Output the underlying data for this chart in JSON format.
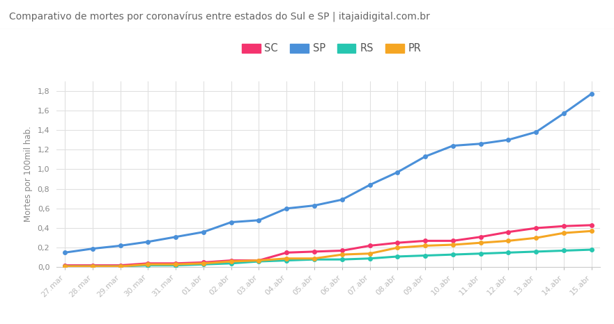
{
  "title": "Comparativo de mortes por coronavírus entre estados do Sul e SP | itajaidigital.com.br",
  "ylabel": "Mortes por 100mil hab.",
  "x_labels": [
    "27.mar",
    "28.mar",
    "29.mar",
    "30.mar",
    "31.mar",
    "01.abr",
    "02.abr",
    "03.abr",
    "04.abr",
    "05.abr",
    "06.abr",
    "07.abr",
    "08.abr",
    "09.abr",
    "10.abr",
    "11.abr",
    "12.abr",
    "13.abr",
    "14.abr",
    "15.abr"
  ],
  "SC": [
    0.02,
    0.02,
    0.02,
    0.04,
    0.04,
    0.05,
    0.07,
    0.07,
    0.15,
    0.16,
    0.17,
    0.22,
    0.25,
    0.27,
    0.27,
    0.31,
    0.36,
    0.4,
    0.42,
    0.43
  ],
  "SP": [
    0.15,
    0.19,
    0.22,
    0.26,
    0.31,
    0.36,
    0.46,
    0.48,
    0.6,
    0.63,
    0.69,
    0.84,
    0.97,
    1.13,
    1.24,
    1.26,
    1.3,
    1.38,
    1.57,
    1.77
  ],
  "RS": [
    0.01,
    0.01,
    0.01,
    0.02,
    0.02,
    0.03,
    0.04,
    0.06,
    0.07,
    0.08,
    0.08,
    0.09,
    0.11,
    0.12,
    0.13,
    0.14,
    0.15,
    0.16,
    0.17,
    0.18
  ],
  "PR": [
    0.01,
    0.01,
    0.01,
    0.03,
    0.03,
    0.04,
    0.06,
    0.07,
    0.09,
    0.09,
    0.13,
    0.14,
    0.2,
    0.22,
    0.23,
    0.25,
    0.27,
    0.3,
    0.35,
    0.37
  ],
  "SC_color": "#f4336e",
  "SP_color": "#4a90d9",
  "RS_color": "#26c6b0",
  "PR_color": "#f5a623",
  "line_width": 2.2,
  "marker_size": 4.0,
  "ylim": [
    0,
    1.9
  ],
  "yticks": [
    0.0,
    0.2,
    0.4,
    0.6,
    0.8,
    1.0,
    1.2,
    1.4,
    1.6,
    1.8
  ],
  "bg_color": "#ffffff",
  "title_bg": "#f0f0f0",
  "grid_color": "#e0e0e0",
  "title_fontsize": 10.0,
  "label_fontsize": 8.5,
  "tick_fontsize": 8.0,
  "legend_fontsize": 10.5
}
